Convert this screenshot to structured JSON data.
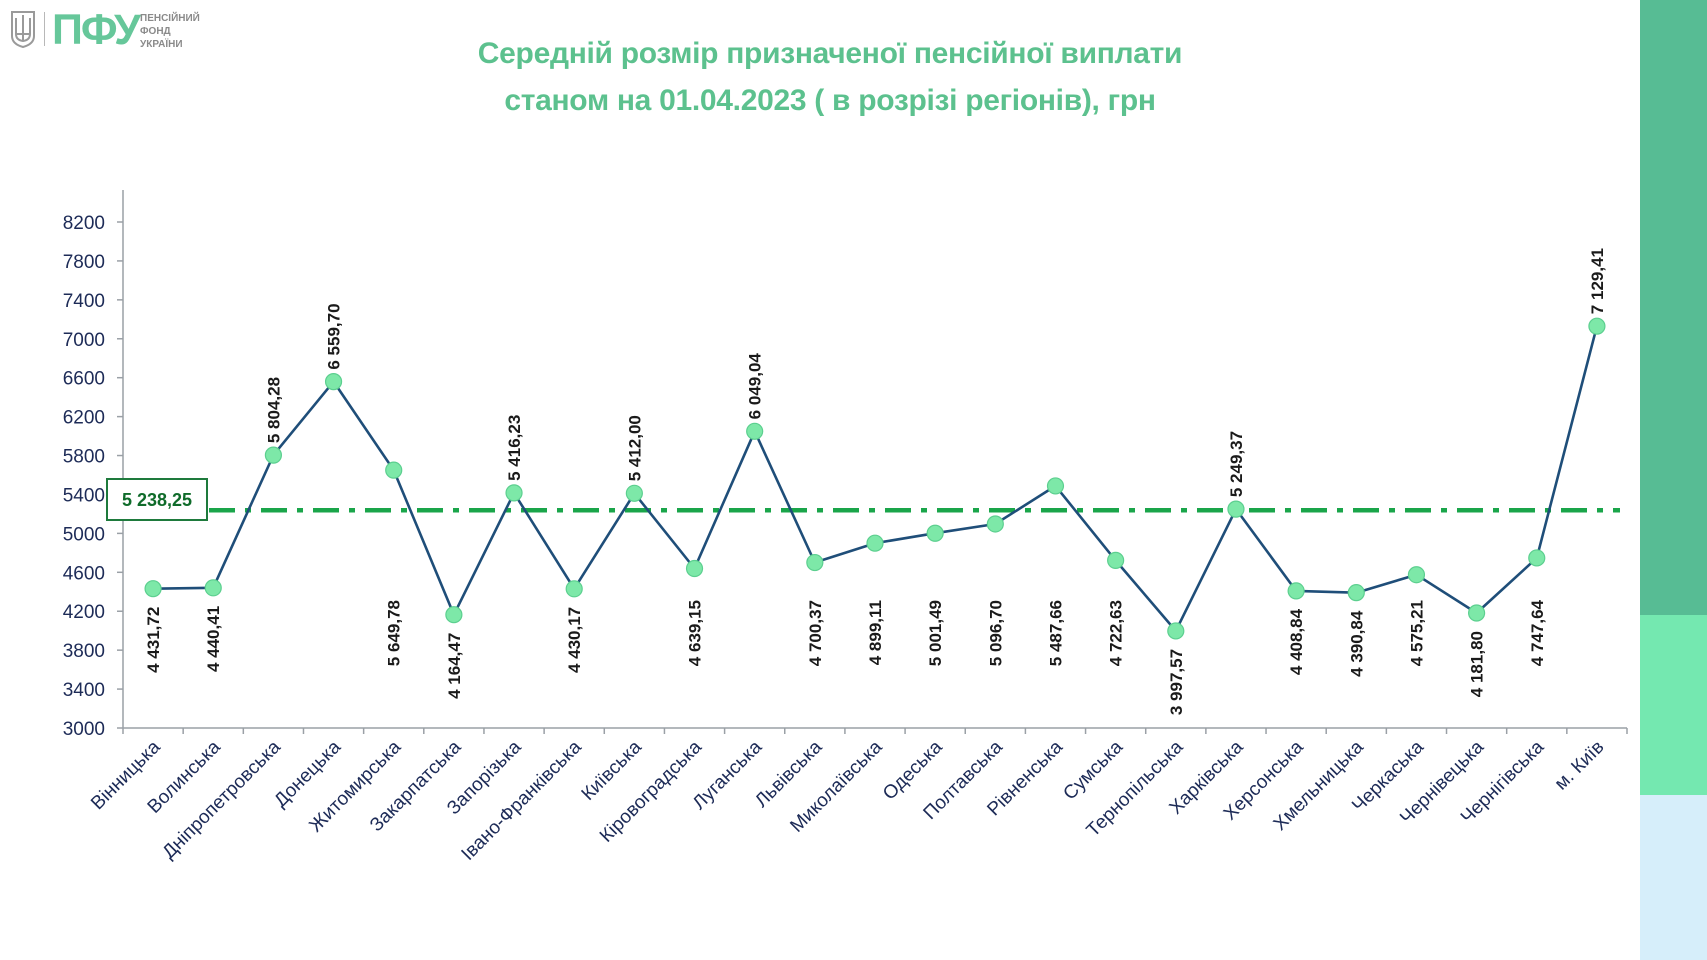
{
  "header": {
    "logo_abbr": "ПФУ",
    "logo_fullname": "ПЕНСІЙНИЙ\nФОНД\nУКРАЇНИ",
    "title_line1": "Середній розмір призначеної пенсійної виплати",
    "title_line2": "станом на 01.04.2023 ( в розрізі регіонів), грн"
  },
  "colors": {
    "title": "#5cc18e",
    "line": "#1f4e79",
    "marker_fill": "#7de8a8",
    "average_line": "#1aa54a",
    "axis_text": "#1d2b57",
    "sidebar": [
      "#57bc94",
      "#74e8b0",
      "#d6eefa"
    ]
  },
  "chart_data": {
    "type": "line",
    "categories": [
      "Вінницька",
      "Волинська",
      "Дніпропетровська",
      "Донецька",
      "Житомирська",
      "Закарпатська",
      "Запорізька",
      "Івано-Франківська",
      "Київська",
      "Кіровоградська",
      "Луганська",
      "Львівська",
      "Миколаївська",
      "Одеська",
      "Полтавська",
      "Рівненська",
      "Сумська",
      "Тернопільська",
      "Харківська",
      "Херсонська",
      "Хмельницька",
      "Черкаська",
      "Чернівецька",
      "Чернігівська",
      "м. Київ"
    ],
    "values": [
      4431.72,
      4440.41,
      5804.28,
      6559.7,
      5649.78,
      4164.47,
      5416.23,
      4430.17,
      5412.0,
      4639.15,
      6049.04,
      4700.37,
      4899.11,
      5001.49,
      5096.7,
      5487.66,
      4722.63,
      3997.57,
      5249.37,
      4408.84,
      4390.84,
      4575.21,
      4181.8,
      4747.64,
      7129.41
    ],
    "data_labels": [
      "4 431,72",
      "4 440,41",
      "5 804,28",
      "6 559,70",
      "5 649,78",
      "4 164,47",
      "5 416,23",
      "4 430,17",
      "5 412,00",
      "4 639,15",
      "6 049,04",
      "4 700,37",
      "4 899,11",
      "5 001,49",
      "5 096,70",
      "5 487,66",
      "4 722,63",
      "3 997,57",
      "5 249,37",
      "4 408,84",
      "4 390,84",
      "4 575,21",
      "4 181,80",
      "4 747,64",
      "7 129,41"
    ],
    "label_positions": [
      "below",
      "below",
      "above",
      "above",
      "below",
      "below",
      "above",
      "below",
      "above",
      "below",
      "above",
      "below",
      "below",
      "below",
      "below",
      "below",
      "below",
      "below",
      "above",
      "below",
      "below",
      "below",
      "below",
      "below",
      "above"
    ],
    "average": {
      "value": 5238.25,
      "label": "5 238,25"
    },
    "ylim": [
      3000,
      8200
    ],
    "yticks": [
      3000,
      3400,
      3800,
      4200,
      4600,
      5000,
      5400,
      5800,
      6200,
      6600,
      7000,
      7400,
      7800,
      8200
    ],
    "xlabel": "",
    "ylabel": "",
    "grid": false,
    "legend": "none"
  }
}
